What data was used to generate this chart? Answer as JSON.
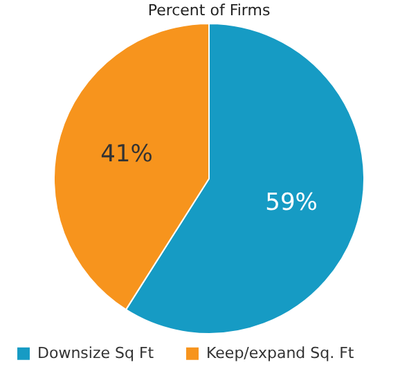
{
  "chart_data": {
    "type": "pie",
    "title": "Percent of Firms",
    "categories": [
      "Downsize Sq Ft",
      "Keep/expand Sq. Ft"
    ],
    "values": [
      59,
      41
    ],
    "colors": [
      "#169bc4",
      "#f7941d"
    ],
    "value_labels": [
      "59%",
      "41%"
    ],
    "legend": "bottom"
  }
}
